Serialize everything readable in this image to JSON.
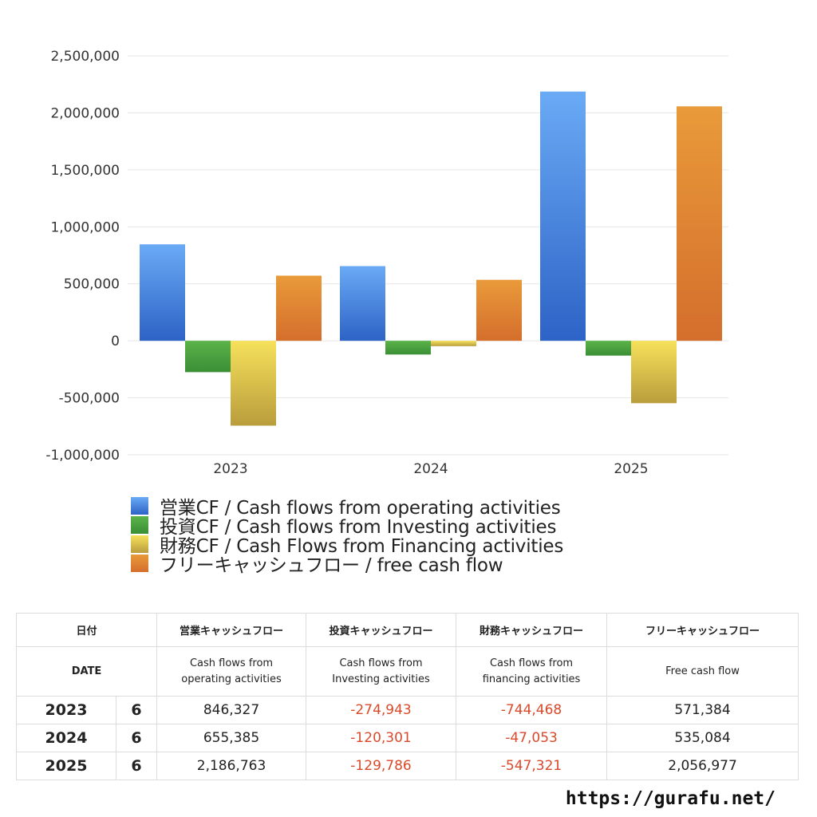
{
  "colors": {
    "operating": [
      "#6aaaf5",
      "#2d63c6"
    ],
    "investing": [
      "#5bb34a",
      "#3a8f35"
    ],
    "financing": [
      "#f6e15b",
      "#b99d3c"
    ],
    "free": [
      "#e99a3a",
      "#d46e2c"
    ],
    "negative_text": "#d94a2b"
  },
  "chart_data": {
    "type": "bar",
    "categories": [
      "2023",
      "2024",
      "2025"
    ],
    "series": [
      {
        "name": "営業CF / Cash flows from operating activities",
        "key": "operating",
        "values": [
          846327,
          655385,
          2186763
        ]
      },
      {
        "name": "投資CF / Cash flows from Investing activities",
        "key": "investing",
        "values": [
          -274943,
          -120301,
          -129786
        ]
      },
      {
        "name": "財務CF / Cash Flows from Financing activities",
        "key": "financing",
        "values": [
          -744468,
          -47053,
          -547321
        ]
      },
      {
        "name": "フリーキャッシュフロー / free cash flow",
        "key": "free",
        "values": [
          571384,
          535084,
          2056977
        ]
      }
    ],
    "yticks": [
      "2,500,000",
      "2,000,000",
      "1,500,000",
      "1,000,000",
      "500,000",
      "0",
      "-500,000",
      "-1,000,000"
    ],
    "ylim": [
      -1000000,
      2500000
    ],
    "grid": true,
    "legend_position": "bottom-left"
  },
  "table": {
    "header_row1": {
      "date": "日付",
      "operating": "営業キャッシュフロー",
      "investing": "投資キャッシュフロー",
      "financing": "財務キャッシュフロー",
      "free": "フリーキャッシュフロー"
    },
    "header_row2": {
      "date": "DATE",
      "operating": [
        "Cash flows from",
        "operating activities"
      ],
      "investing": [
        "Cash flows from",
        "Investing activities"
      ],
      "financing": [
        "Cash flows from",
        "financing activities"
      ],
      "free": "Free cash flow"
    },
    "rows": [
      {
        "year": "2023",
        "month": "6",
        "operating": "846,327",
        "investing": "-274,943",
        "financing": "-744,468",
        "free": "571,384"
      },
      {
        "year": "2024",
        "month": "6",
        "operating": "655,385",
        "investing": "-120,301",
        "financing": "-47,053",
        "free": "535,084"
      },
      {
        "year": "2025",
        "month": "6",
        "operating": "2,186,763",
        "investing": "-129,786",
        "financing": "-547,321",
        "free": "2,056,977"
      }
    ]
  },
  "footer": {
    "url": "https://gurafu.net/"
  }
}
